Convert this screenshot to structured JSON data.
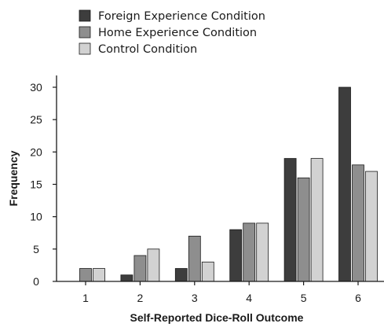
{
  "chart_data": {
    "type": "bar",
    "title": "",
    "xlabel": "Self-Reported Dice-Roll Outcome",
    "ylabel": "Frequency",
    "categories": [
      "1",
      "2",
      "3",
      "4",
      "5",
      "6"
    ],
    "ylim": [
      0,
      32
    ],
    "yticks": [
      "0",
      "5",
      "10",
      "15",
      "20",
      "25",
      "30"
    ],
    "legend_position": "top-left",
    "grid": false,
    "series": [
      {
        "name": "Foreign Experience Condition",
        "color": "#3d3d3d",
        "values": [
          0,
          1,
          2,
          8,
          19,
          30
        ]
      },
      {
        "name": "Home Experience Condition",
        "color": "#8e8e8e",
        "values": [
          2,
          4,
          7,
          9,
          16,
          18
        ]
      },
      {
        "name": "Control Condition",
        "color": "#d2d2d2",
        "values": [
          2,
          5,
          3,
          9,
          19,
          17
        ]
      }
    ]
  }
}
